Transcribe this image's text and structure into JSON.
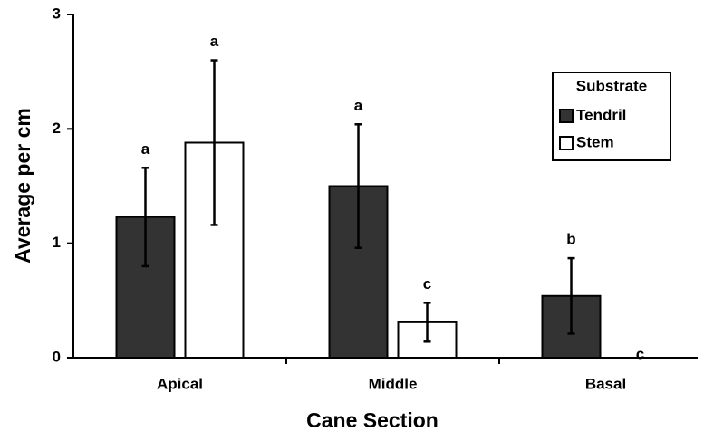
{
  "chart_data": {
    "type": "bar",
    "x_label": "Cane Section",
    "y_label": "Average per cm",
    "categories": [
      "Apical",
      "Middle",
      "Basal"
    ],
    "series": [
      {
        "name": "Tendril",
        "color": "#333333",
        "values": [
          1.23,
          1.5,
          0.54
        ],
        "errors": [
          0.43,
          0.54,
          0.33
        ],
        "letters": [
          "a",
          "a",
          "b"
        ]
      },
      {
        "name": "Stem",
        "color": "#ffffff",
        "values": [
          1.88,
          0.31,
          0
        ],
        "errors": [
          0.72,
          0.17,
          0
        ],
        "letters": [
          "a",
          "c",
          "c"
        ]
      }
    ],
    "ylim": [
      0,
      3
    ],
    "yticks": [
      0,
      1,
      2,
      3
    ],
    "legend_title": "Substrate",
    "legend_position": "right"
  }
}
